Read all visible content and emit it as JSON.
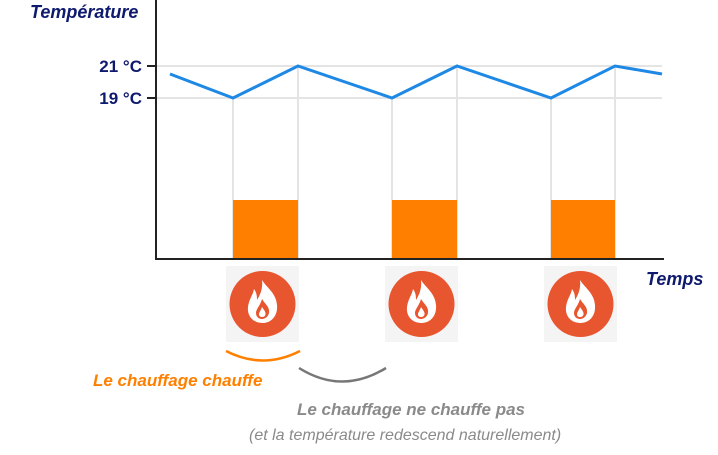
{
  "axes": {
    "y_title": "Température",
    "x_title": "Temps",
    "y_ticks": [
      "21 °C",
      "19 °C"
    ]
  },
  "captions": {
    "heating_on": "Le chauffage chauffe",
    "heating_off": "Le chauffage ne chauffe pas",
    "heating_off_note": "(et la température redescend naturellement)"
  },
  "chart_data": {
    "type": "line",
    "x": [
      0,
      1,
      2,
      3,
      4,
      5,
      6,
      7
    ],
    "y": [
      20.5,
      19,
      21,
      19,
      21,
      19,
      21,
      20.5
    ],
    "ylim": [
      19,
      21
    ],
    "heating_periods": [
      [
        1,
        2
      ],
      [
        3,
        4
      ],
      [
        5,
        6
      ]
    ],
    "xlabel": "Temps",
    "ylabel": "Température",
    "yticks": [
      "21 °C",
      "19 °C"
    ]
  },
  "icons": [
    "flame-icon",
    "flame-icon",
    "flame-icon"
  ],
  "colors": {
    "line": "#1e88e5",
    "heating_bar": "#ff8000",
    "axis_text": "#0e1a6e",
    "flame_bg": "#e8562f",
    "caption_on": "#ff7f00",
    "caption_off": "#8a8a8a"
  }
}
